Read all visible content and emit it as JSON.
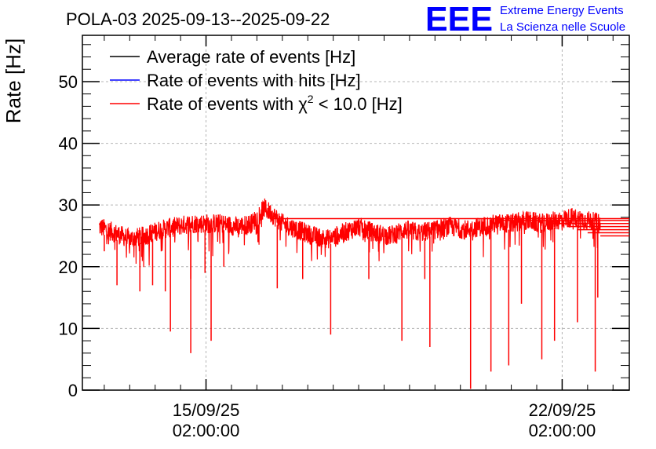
{
  "chart_data": {
    "type": "line",
    "title": "POLA-03 2025-09-13--2025-09-22",
    "ylabel": "Rate [Hz]",
    "xlabel": "",
    "ylim": [
      0,
      57.5
    ],
    "xlim_days": [
      -2.43,
      8.32
    ],
    "grid": true,
    "y_ticks": [
      0,
      10,
      20,
      30,
      40,
      50
    ],
    "y_tick_labels": [
      "0",
      "10",
      "20",
      "30",
      "40",
      "50"
    ],
    "x_ticks": [
      {
        "day": 0,
        "date": "15/09/25",
        "time": "02:00:00"
      },
      {
        "day": 7,
        "date": "22/09/25",
        "time": "02:00:00"
      }
    ],
    "legend": {
      "placement": "top-left",
      "entries": [
        {
          "name": "Average rate of events [Hz]",
          "color": "#000000"
        },
        {
          "name": "Rate of events with hits [Hz]",
          "color": "#0000ff"
        },
        {
          "name_prefix": "Rate of events with ",
          "chi_symbol": "χ",
          "chi_exp": "2",
          "name_suffix": " < 10.0 [Hz]",
          "color": "#ff0000"
        }
      ]
    },
    "series": [
      {
        "name": "Rate of events with chi2 < 10.0 [Hz]",
        "color": "#ff0000",
        "x_days": [
          -2.1,
          -1.8,
          -1.5,
          -1.2,
          -0.9,
          -0.6,
          -0.3,
          0.0,
          0.3,
          0.6,
          0.9,
          1.15,
          1.3,
          1.5,
          1.8,
          2.1,
          2.4,
          2.7,
          3.0,
          3.3,
          3.6,
          3.9,
          4.2,
          4.5,
          4.8,
          5.1,
          5.4,
          5.7,
          6.0,
          6.3,
          6.6,
          6.9,
          7.2,
          7.5,
          7.75
        ],
        "values": [
          26.5,
          25.5,
          24.5,
          25.0,
          26.0,
          26.5,
          27.0,
          27.0,
          27.0,
          26.5,
          27.0,
          29.5,
          28.5,
          27.0,
          26.0,
          25.0,
          24.5,
          25.5,
          26.5,
          25.5,
          25.0,
          26.0,
          25.5,
          26.0,
          26.5,
          26.0,
          26.5,
          27.0,
          27.0,
          27.5,
          27.0,
          27.5,
          28.0,
          27.5,
          27.0
        ],
        "dips": [
          {
            "x_day": -2.0,
            "value": 22.5
          },
          {
            "x_day": -1.75,
            "value": 17.0
          },
          {
            "x_day": -1.3,
            "value": 16.0
          },
          {
            "x_day": -1.05,
            "value": 17.0
          },
          {
            "x_day": -0.8,
            "value": 16.0
          },
          {
            "x_day": -0.7,
            "value": 9.5
          },
          {
            "x_day": -0.3,
            "value": 6.0
          },
          {
            "x_day": -0.3,
            "value": 18.0
          },
          {
            "x_day": -0.02,
            "value": 19.0
          },
          {
            "x_day": 0.1,
            "value": 8.0
          },
          {
            "x_day": 0.35,
            "value": 20.0
          },
          {
            "x_day": 1.4,
            "value": 16.5
          },
          {
            "x_day": 1.9,
            "value": 18.0
          },
          {
            "x_day": 2.45,
            "value": 9.0
          },
          {
            "x_day": 3.2,
            "value": 18.0
          },
          {
            "x_day": 3.85,
            "value": 8.0
          },
          {
            "x_day": 4.3,
            "value": 18.0
          },
          {
            "x_day": 4.4,
            "value": 7.0
          },
          {
            "x_day": 5.2,
            "value": 0.2
          },
          {
            "x_day": 5.6,
            "value": 3.0
          },
          {
            "x_day": 5.95,
            "value": 4.0
          },
          {
            "x_day": 6.2,
            "value": 14.0
          },
          {
            "x_day": 6.6,
            "value": 5.0
          },
          {
            "x_day": 6.85,
            "value": 8.0
          },
          {
            "x_day": 7.3,
            "value": 11.0
          },
          {
            "x_day": 7.65,
            "value": 3.0
          },
          {
            "x_day": 7.7,
            "value": 15.0
          }
        ],
        "tail_levels": [
          27.8,
          27.5,
          27.0,
          26.5,
          26.0,
          25.5,
          25.0
        ],
        "tail_start_days": [
          1.3,
          5.7,
          6.8,
          7.1,
          7.3,
          7.5,
          7.75
        ]
      }
    ]
  },
  "logo": {
    "text": "EEE",
    "line1": "Extreme Energy Events",
    "line2": "La Scienza nelle Scuole",
    "color": "#0000ff"
  }
}
